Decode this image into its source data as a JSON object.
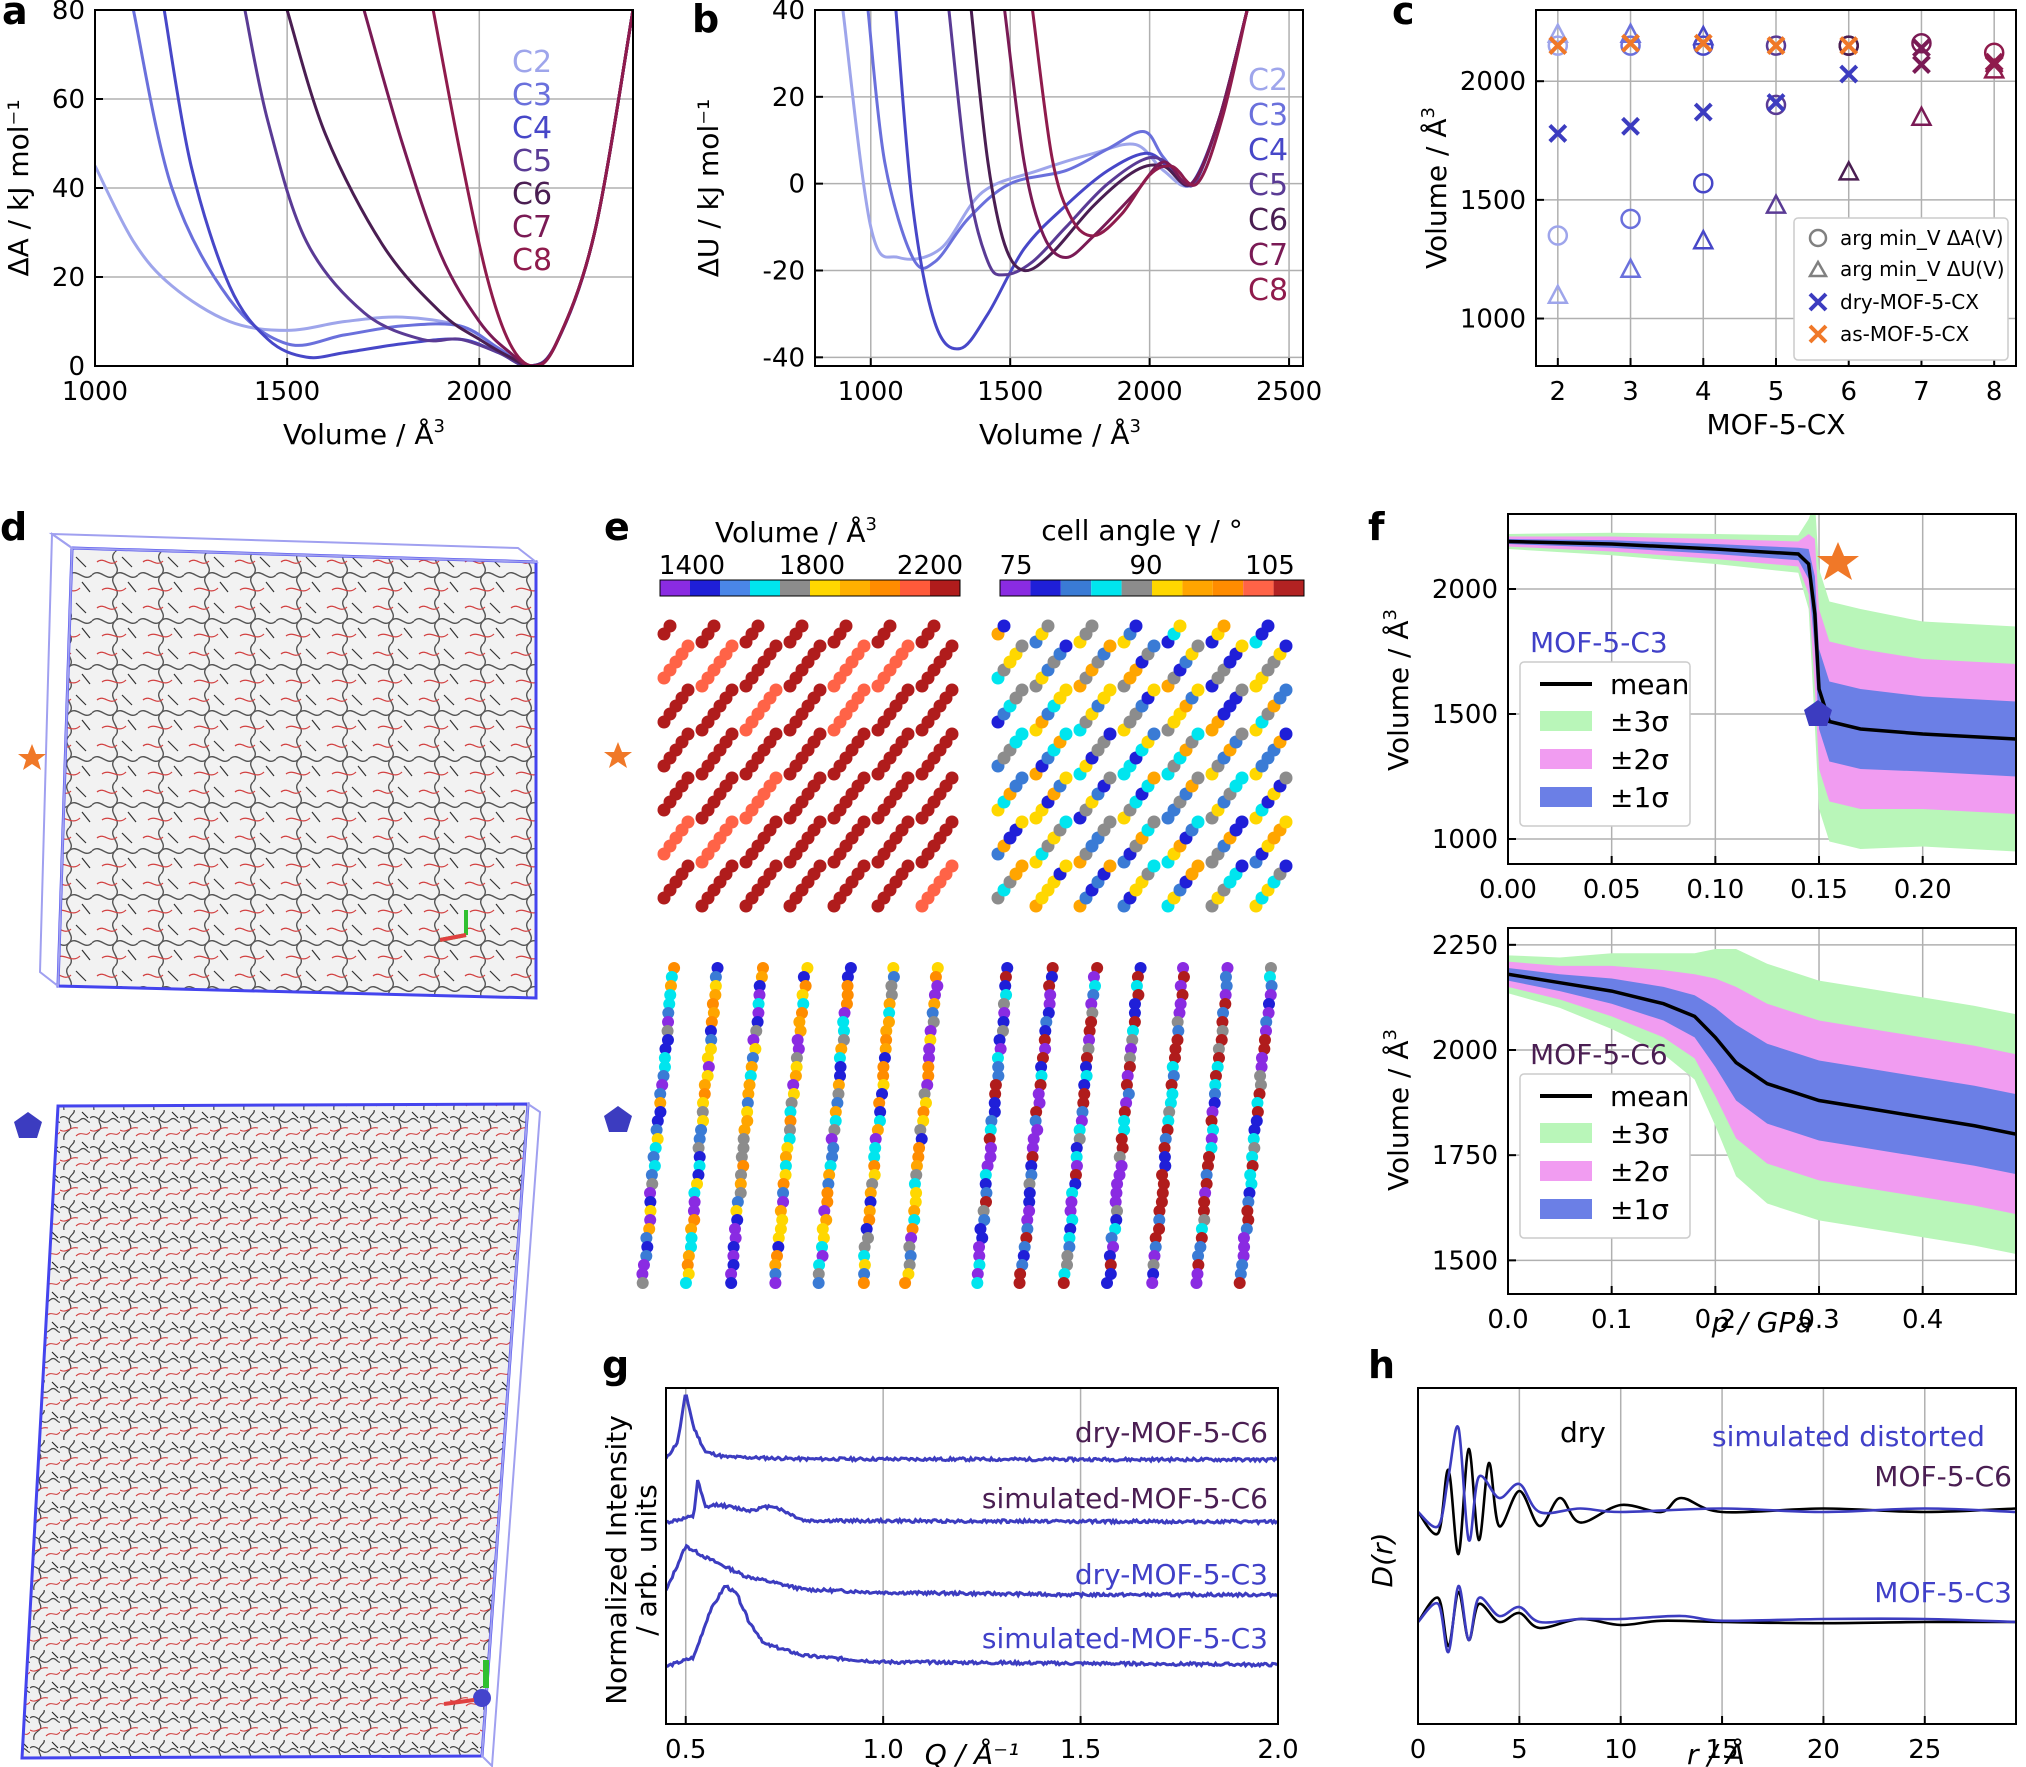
{
  "panels": {
    "a": {
      "label": "a",
      "xlabel": "Volume / Å",
      "xlabel_sup": "3",
      "ylabel": "ΔA / kJ mol⁻¹"
    },
    "b": {
      "label": "b",
      "xlabel": "Volume / Å",
      "xlabel_sup": "3",
      "ylabel": "ΔU / kJ mol⁻¹"
    },
    "c": {
      "label": "c",
      "xlabel": "MOF-5-CX",
      "ylabel": "Volume / Å",
      "ylabel_sup": "3",
      "legend": [
        "arg min_V ΔA(V)",
        "arg min_V ΔU(V)",
        "dry-MOF-5-CX",
        "as-MOF-5-CX"
      ]
    },
    "d": {
      "label": "d"
    },
    "e": {
      "label": "e",
      "cb1_title": "Volume / Å",
      "cb1_sup": "3",
      "cb1_ticks": [
        "1400",
        "1800",
        "2200"
      ],
      "cb2_title": "cell angle  γ / °",
      "cb2_ticks": [
        "75",
        "90",
        "105"
      ]
    },
    "f": {
      "label": "f",
      "xlabel": "p / GPa",
      "ylabel": "Volume / Å",
      "ylabel_sup": "3",
      "top_title": "MOF-5-C3",
      "bottom_title": "MOF-5-C6",
      "legend": [
        "mean",
        "±3σ",
        "±2σ",
        "±1σ"
      ]
    },
    "g": {
      "label": "g",
      "xlabel": "Q / Å⁻¹",
      "ylabel1": "Normalized Intensity",
      "ylabel2": "/ arb. units",
      "curve_labels": [
        {
          "prefix": "dry-",
          "name": "MOF-5-C6"
        },
        {
          "prefix": "simulated-",
          "name": "MOF-5-C6"
        },
        {
          "prefix": "dry-",
          "name": "MOF-5-C3"
        },
        {
          "prefix": "simulated-",
          "name": "MOF-5-C3"
        }
      ]
    },
    "h": {
      "label": "h",
      "xlabel": "r / Å",
      "ylabel": "D(r)",
      "annot_dry": "dry",
      "annot_sim": "simulated  distorted",
      "top_name": "MOF-5-C6",
      "bottom_name": "MOF-5-C3"
    }
  },
  "colors": {
    "C2": "#9ea5eb",
    "C3": "#6a70dc",
    "C4": "#4747c8",
    "C5": "#5a3b95",
    "C6": "#4a1e52",
    "C7": "#7a1a55",
    "C8": "#8f1b4c",
    "blue": "#3c3cc0",
    "orange": "#f07828",
    "green": "#b9f6b9",
    "pink": "#f19cf1",
    "band1": "#6b7fe6"
  },
  "chart_data": [
    {
      "id": "a",
      "type": "line",
      "xlim": [
        1000,
        2400
      ],
      "ylim": [
        0,
        80
      ],
      "xticks": [
        1000,
        1500,
        2000
      ],
      "yticks": [
        0,
        20,
        40,
        60,
        80
      ],
      "grid": true,
      "legend": "top-right",
      "series": [
        {
          "name": "C2",
          "x": [
            1000,
            1100,
            1200,
            1350,
            1500,
            1650,
            1800,
            1950,
            2050,
            2130,
            2200,
            2300,
            2400
          ],
          "y": [
            45,
            28,
            18,
            10,
            8,
            10,
            11,
            9,
            4,
            0,
            5,
            30,
            80
          ]
        },
        {
          "name": "C3",
          "x": [
            1100,
            1200,
            1350,
            1500,
            1650,
            1800,
            1950,
            2050,
            2130,
            2200,
            2300,
            2400
          ],
          "y": [
            80,
            40,
            15,
            5,
            7,
            9,
            9,
            4,
            0,
            5,
            30,
            80
          ]
        },
        {
          "name": "C4",
          "x": [
            1180,
            1250,
            1350,
            1450,
            1550,
            1650,
            1800,
            1950,
            2050,
            2130,
            2200,
            2300,
            2400
          ],
          "y": [
            80,
            45,
            18,
            6,
            2,
            3,
            5,
            6,
            3,
            0,
            5,
            30,
            80
          ]
        },
        {
          "name": "C5",
          "x": [
            1390,
            1450,
            1550,
            1700,
            1850,
            1950,
            2050,
            2130,
            2200,
            2300,
            2400
          ],
          "y": [
            80,
            55,
            28,
            12,
            6,
            6,
            3,
            0,
            5,
            30,
            80
          ]
        },
        {
          "name": "C6",
          "x": [
            1500,
            1600,
            1750,
            1900,
            2000,
            2080,
            2140,
            2200,
            2300,
            2400
          ],
          "y": [
            80,
            52,
            27,
            12,
            6,
            2,
            0,
            5,
            30,
            80
          ]
        },
        {
          "name": "C7",
          "x": [
            1700,
            1800,
            1900,
            2000,
            2080,
            2140,
            2200,
            2300,
            2400
          ],
          "y": [
            80,
            50,
            25,
            10,
            3,
            0,
            5,
            30,
            80
          ]
        },
        {
          "name": "C8",
          "x": [
            1880,
            1950,
            2020,
            2080,
            2140,
            2200,
            2300,
            2400
          ],
          "y": [
            80,
            48,
            20,
            5,
            0,
            5,
            30,
            80
          ]
        }
      ]
    },
    {
      "id": "b",
      "type": "line",
      "xlim": [
        800,
        2550
      ],
      "ylim": [
        -42,
        40
      ],
      "xticks": [
        1000,
        1500,
        2000,
        2500
      ],
      "yticks": [
        -40,
        -20,
        0,
        20,
        40
      ],
      "grid": true,
      "legend": "right",
      "series": [
        {
          "name": "C2",
          "x": [
            900,
            1000,
            1100,
            1250,
            1400,
            1600,
            1800,
            1950,
            2050,
            2150,
            2250,
            2350
          ],
          "y": [
            40,
            -10,
            -17,
            -15,
            -2,
            3,
            7,
            9,
            3,
            0,
            15,
            40
          ]
        },
        {
          "name": "C3",
          "x": [
            990,
            1050,
            1150,
            1230,
            1350,
            1500,
            1700,
            1850,
            1980,
            2050,
            2150,
            2250,
            2350
          ],
          "y": [
            40,
            5,
            -17,
            -18,
            -8,
            0,
            3,
            8,
            12,
            6,
            0,
            15,
            40
          ]
        },
        {
          "name": "C4",
          "x": [
            1090,
            1150,
            1230,
            1320,
            1420,
            1550,
            1700,
            1850,
            1990,
            2080,
            2150,
            2250,
            2350
          ],
          "y": [
            40,
            -5,
            -32,
            -38,
            -30,
            -15,
            -5,
            3,
            7,
            3,
            0,
            15,
            40
          ]
        },
        {
          "name": "C5",
          "x": [
            1280,
            1350,
            1420,
            1480,
            1580,
            1700,
            1850,
            2000,
            2100,
            2160,
            2250,
            2350
          ],
          "y": [
            40,
            0,
            -18,
            -21,
            -18,
            -10,
            0,
            6,
            3,
            0,
            15,
            40
          ]
        },
        {
          "name": "C6",
          "x": [
            1360,
            1420,
            1480,
            1550,
            1650,
            1800,
            1950,
            2050,
            2150,
            2250,
            2350
          ],
          "y": [
            40,
            5,
            -14,
            -20,
            -16,
            -5,
            3,
            4,
            0,
            15,
            40
          ]
        },
        {
          "name": "C7",
          "x": [
            1480,
            1550,
            1620,
            1700,
            1800,
            1950,
            2050,
            2150,
            2250,
            2350
          ],
          "y": [
            40,
            5,
            -12,
            -17,
            -12,
            -2,
            5,
            0,
            15,
            40
          ]
        },
        {
          "name": "C8",
          "x": [
            1580,
            1650,
            1720,
            1800,
            1900,
            2000,
            2080,
            2170,
            2260,
            2350
          ],
          "y": [
            40,
            6,
            -8,
            -12,
            -7,
            2,
            4,
            0,
            15,
            40
          ]
        }
      ]
    },
    {
      "id": "c",
      "type": "scatter",
      "xlim": [
        1.7,
        8.3
      ],
      "ylim": [
        800,
        2300
      ],
      "xticks": [
        2,
        3,
        4,
        5,
        6,
        7,
        8
      ],
      "yticks": [
        1000,
        1500,
        2000
      ],
      "grid": true,
      "legend": "bottom-right",
      "x": [
        2,
        3,
        4,
        5,
        6,
        7,
        8
      ],
      "series": [
        {
          "name": "arg min_V ΔA(V)",
          "marker": "circle",
          "y": [
            1350,
            1420,
            1570,
            1900,
            2150,
            2160,
            2120
          ],
          "y_second": [
            2150,
            2150,
            2150,
            2150,
            2150
          ]
        },
        {
          "name": "arg min_V ΔU(V)",
          "marker": "triangle",
          "y": [
            1100,
            1210,
            1330,
            1480,
            1620,
            1850,
            2050
          ],
          "y_second": [
            2200,
            2200,
            2190
          ]
        },
        {
          "name": "dry-MOF-5-CX",
          "marker": "x",
          "y": [
            1780,
            1810,
            1870,
            1910,
            2030,
            2070,
            2070
          ]
        },
        {
          "name": "as-MOF-5-CX",
          "marker": "x",
          "y": [
            2150,
            2160,
            2160,
            2150,
            2150,
            2140,
            2080
          ]
        }
      ]
    },
    {
      "id": "f_top",
      "type": "area",
      "xlim": [
        0,
        0.245
      ],
      "ylim": [
        900,
        2300
      ],
      "xticks": [
        0.0,
        0.05,
        0.1,
        0.15,
        0.2
      ],
      "xticklabels": [
        "0.00",
        "0.05",
        "0.10",
        "0.15",
        "0.20"
      ],
      "yticks": [
        1000,
        1500,
        2000
      ],
      "grid": true,
      "legend": "bottom-left",
      "x": [
        0,
        0.05,
        0.1,
        0.14,
        0.145,
        0.148,
        0.15,
        0.155,
        0.17,
        0.2,
        0.245
      ],
      "mean": [
        2190,
        2180,
        2160,
        2140,
        2100,
        1900,
        1600,
        1470,
        1440,
        1420,
        1400
      ],
      "sigma": [
        10,
        15,
        20,
        25,
        60,
        150,
        160,
        160,
        160,
        150,
        150
      ]
    },
    {
      "id": "f_bottom",
      "type": "area",
      "xlim": [
        0,
        0.49
      ],
      "ylim": [
        1420,
        2290
      ],
      "xticks": [
        0.0,
        0.1,
        0.2,
        0.3,
        0.4
      ],
      "xticklabels": [
        "0.0",
        "0.1",
        "0.2",
        "0.3",
        "0.4"
      ],
      "yticks": [
        1500,
        1750,
        2000,
        2250
      ],
      "grid": true,
      "legend": "bottom-left",
      "x": [
        0,
        0.05,
        0.1,
        0.15,
        0.18,
        0.2,
        0.22,
        0.25,
        0.3,
        0.35,
        0.4,
        0.45,
        0.49
      ],
      "mean": [
        2180,
        2160,
        2140,
        2110,
        2080,
        2030,
        1970,
        1920,
        1880,
        1860,
        1840,
        1820,
        1800
      ],
      "sigma": [
        15,
        20,
        30,
        40,
        50,
        70,
        90,
        95,
        95,
        95,
        95,
        95,
        95
      ]
    },
    {
      "id": "g",
      "type": "line",
      "xlim": [
        0.45,
        2.0
      ],
      "xticks": [
        0.5,
        1.0,
        1.5,
        2.0
      ],
      "xticklabels": [
        "0.5",
        "1.0",
        "1.5",
        "2.0"
      ],
      "grid": true,
      "series": [
        {
          "name": "dry-MOF-5-C6",
          "x": [
            0.45,
            0.48,
            0.5,
            0.52,
            0.55,
            0.6,
            0.8,
            2.0
          ],
          "y": [
            0.05,
            0.3,
            1.0,
            0.5,
            0.15,
            0.08,
            0.05,
            0.04
          ]
        },
        {
          "name": "simulated-MOF-5-C6",
          "x": [
            0.45,
            0.52,
            0.53,
            0.55,
            0.58,
            0.62,
            0.66,
            0.72,
            0.8,
            2.0
          ],
          "y": [
            0.0,
            0.1,
            0.7,
            0.25,
            0.3,
            0.25,
            0.2,
            0.28,
            0.03,
            0.01
          ]
        },
        {
          "name": "dry-MOF-5-C3",
          "x": [
            0.45,
            0.5,
            0.55,
            0.65,
            0.8,
            1.0,
            1.5,
            2.0
          ],
          "y": [
            0.1,
            0.7,
            0.55,
            0.3,
            0.12,
            0.08,
            0.05,
            0.05
          ]
        },
        {
          "name": "simulated-MOF-5-C3",
          "x": [
            0.45,
            0.52,
            0.56,
            0.6,
            0.63,
            0.66,
            0.7,
            0.8,
            1.0,
            2.0
          ],
          "y": [
            0.0,
            0.1,
            0.6,
            0.9,
            0.8,
            0.5,
            0.25,
            0.12,
            0.05,
            0.02
          ]
        }
      ]
    },
    {
      "id": "h",
      "type": "line",
      "xlim": [
        0,
        29.5
      ],
      "xticks": [
        0,
        5,
        10,
        15,
        20,
        25
      ],
      "grid": true,
      "series": [
        {
          "name": "MOF-5-C6 dry",
          "x": [
            0,
            1,
            1.5,
            2,
            2.5,
            3,
            3.5,
            4,
            5,
            6,
            7,
            8,
            10,
            12,
            13,
            15,
            20,
            25,
            29.5
          ],
          "y": [
            0,
            -0.3,
            0.6,
            -0.6,
            0.9,
            -0.4,
            0.7,
            -0.2,
            0.3,
            -0.2,
            0.2,
            -0.15,
            0.1,
            0.0,
            0.2,
            0.0,
            0.05,
            0.0,
            0.05
          ]
        },
        {
          "name": "MOF-5-C6 simulated",
          "x": [
            0,
            1,
            1.5,
            2,
            2.5,
            3,
            4,
            5,
            6,
            8,
            10,
            15,
            20,
            25,
            29.5
          ],
          "y": [
            0,
            -0.2,
            0.5,
            1.2,
            -0.4,
            0.5,
            0.2,
            0.4,
            0.0,
            0.05,
            0.0,
            0.05,
            0.0,
            0.05,
            0.0
          ]
        },
        {
          "name": "MOF-5-C3 dry",
          "x": [
            0,
            1,
            1.5,
            2,
            2.5,
            3,
            4,
            5,
            6,
            8,
            10,
            12,
            15,
            20,
            25,
            29.5
          ],
          "y": [
            0,
            0.4,
            -0.4,
            0.5,
            -0.3,
            0.3,
            0.0,
            0.15,
            -0.1,
            0.05,
            -0.05,
            0.02,
            0.0,
            -0.02,
            0.0,
            0.0
          ]
        },
        {
          "name": "MOF-5-C3 simulated",
          "x": [
            0,
            1,
            1.5,
            2,
            2.5,
            3,
            4,
            5,
            6,
            8,
            10,
            13,
            15,
            20,
            25,
            29.5
          ],
          "y": [
            0,
            0.3,
            -0.5,
            0.6,
            -0.3,
            0.4,
            0.1,
            0.25,
            0.0,
            0.05,
            0.05,
            0.1,
            0.02,
            0.05,
            0.05,
            0.0
          ]
        }
      ]
    }
  ]
}
